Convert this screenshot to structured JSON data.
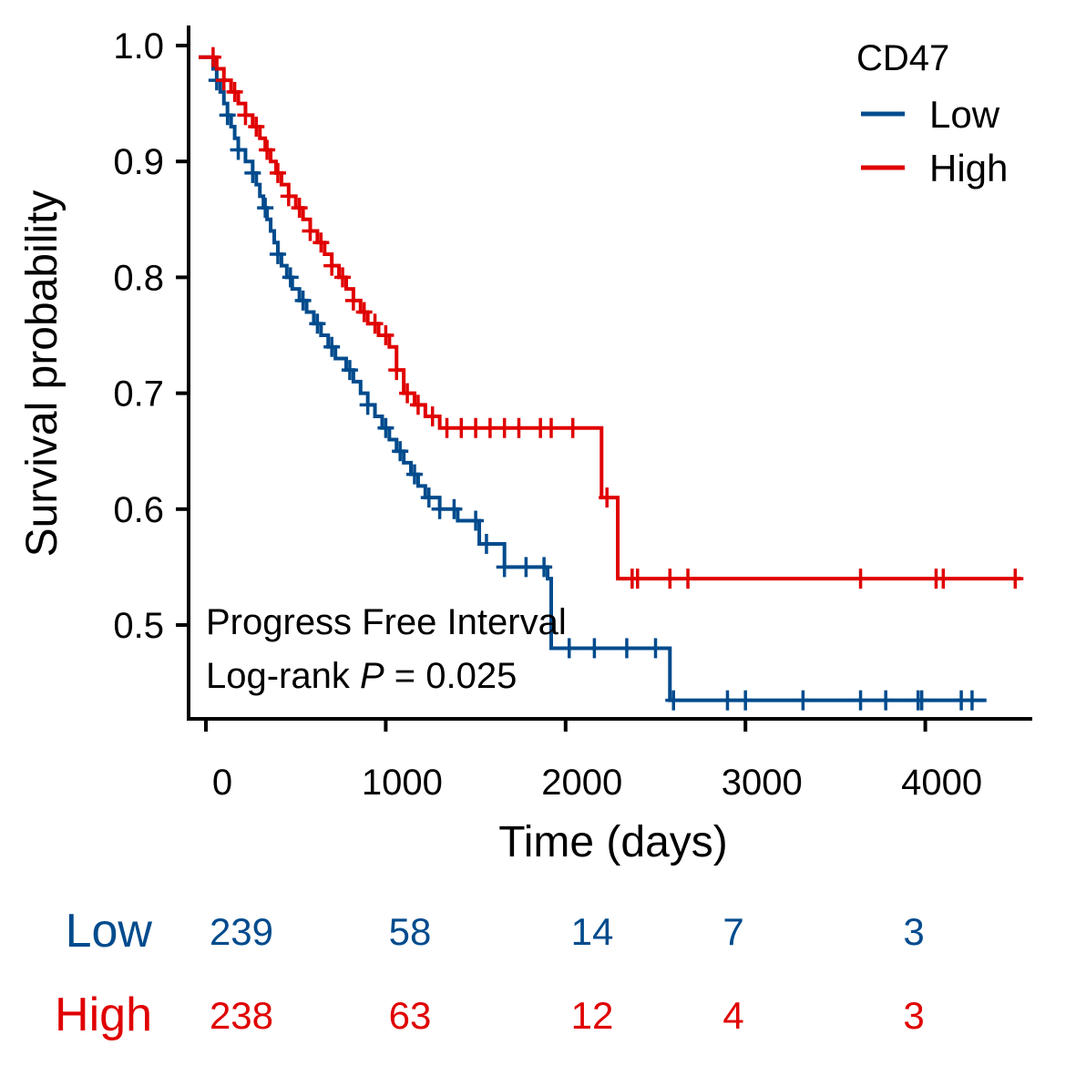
{
  "chart_data": {
    "type": "line",
    "subtype": "kaplan-meier",
    "xlabel": "Time (days)",
    "ylabel": "Survival probability",
    "xlim": [
      -80,
      4580
    ],
    "ylim": [
      0.42,
      1.015
    ],
    "x_ticks": [
      0,
      1000,
      2000,
      3000,
      4000
    ],
    "x_tick_labels": [
      "0",
      "1000",
      "2000",
      "3000",
      "4000"
    ],
    "y_ticks": [
      0.5,
      0.6,
      0.7,
      0.8,
      0.9,
      1.0
    ],
    "y_tick_labels": [
      "0.5",
      "0.6",
      "0.7",
      "0.8",
      "0.9",
      "1.0"
    ],
    "grid": false,
    "legend": {
      "title": "CD47",
      "placement": "top-right",
      "entries": [
        "Low",
        "High"
      ]
    },
    "annotation": {
      "line1": "Progress Free Interval",
      "line2_prefix": "Log-rank  ",
      "line2_p": "P",
      "line2_suffix": " = 0.025"
    },
    "series": [
      {
        "name": "Low",
        "color": "#004B8D",
        "steps": [
          [
            0,
            0.99
          ],
          [
            40,
            0.98
          ],
          [
            60,
            0.97
          ],
          [
            80,
            0.96
          ],
          [
            100,
            0.95
          ],
          [
            120,
            0.94
          ],
          [
            140,
            0.93
          ],
          [
            160,
            0.92
          ],
          [
            180,
            0.91
          ],
          [
            220,
            0.9
          ],
          [
            260,
            0.89
          ],
          [
            280,
            0.88
          ],
          [
            300,
            0.87
          ],
          [
            320,
            0.86
          ],
          [
            340,
            0.85
          ],
          [
            360,
            0.84
          ],
          [
            380,
            0.83
          ],
          [
            400,
            0.82
          ],
          [
            420,
            0.81
          ],
          [
            450,
            0.8
          ],
          [
            480,
            0.79
          ],
          [
            520,
            0.78
          ],
          [
            560,
            0.77
          ],
          [
            600,
            0.76
          ],
          [
            640,
            0.75
          ],
          [
            680,
            0.74
          ],
          [
            720,
            0.73
          ],
          [
            780,
            0.72
          ],
          [
            820,
            0.71
          ],
          [
            860,
            0.7
          ],
          [
            900,
            0.69
          ],
          [
            940,
            0.68
          ],
          [
            980,
            0.67
          ],
          [
            1020,
            0.66
          ],
          [
            1060,
            0.65
          ],
          [
            1100,
            0.64
          ],
          [
            1140,
            0.63
          ],
          [
            1180,
            0.62
          ],
          [
            1220,
            0.61
          ],
          [
            1300,
            0.6
          ],
          [
            1400,
            0.59
          ],
          [
            1520,
            0.57
          ],
          [
            1660,
            0.55
          ],
          [
            1900,
            0.54
          ],
          [
            1920,
            0.48
          ],
          [
            2540,
            0.48
          ],
          [
            2580,
            0.435
          ],
          [
            4340,
            0.435
          ]
        ],
        "censor_times": [
          60,
          120,
          180,
          260,
          330,
          400,
          470,
          540,
          620,
          700,
          800,
          900,
          1000,
          1080,
          1160,
          1240,
          1300,
          1380,
          1500,
          1560,
          1660,
          1780,
          1880,
          2020,
          2160,
          2340,
          2500,
          2600,
          2900,
          3000,
          3320,
          3640,
          3780,
          3960,
          3980,
          4200,
          4260
        ]
      },
      {
        "name": "High",
        "color": "#E00000",
        "steps": [
          [
            0,
            0.99
          ],
          [
            60,
            0.98
          ],
          [
            100,
            0.97
          ],
          [
            140,
            0.96
          ],
          [
            180,
            0.95
          ],
          [
            220,
            0.94
          ],
          [
            260,
            0.93
          ],
          [
            300,
            0.92
          ],
          [
            330,
            0.91
          ],
          [
            360,
            0.9
          ],
          [
            390,
            0.89
          ],
          [
            420,
            0.88
          ],
          [
            460,
            0.87
          ],
          [
            500,
            0.86
          ],
          [
            540,
            0.85
          ],
          [
            580,
            0.84
          ],
          [
            620,
            0.83
          ],
          [
            660,
            0.82
          ],
          [
            700,
            0.81
          ],
          [
            740,
            0.8
          ],
          [
            780,
            0.79
          ],
          [
            820,
            0.78
          ],
          [
            860,
            0.77
          ],
          [
            900,
            0.76
          ],
          [
            960,
            0.75
          ],
          [
            1020,
            0.74
          ],
          [
            1060,
            0.72
          ],
          [
            1100,
            0.7
          ],
          [
            1160,
            0.69
          ],
          [
            1220,
            0.68
          ],
          [
            1300,
            0.67
          ],
          [
            2180,
            0.67
          ],
          [
            2200,
            0.61
          ],
          [
            2270,
            0.61
          ],
          [
            2290,
            0.54
          ],
          [
            4530,
            0.54
          ]
        ],
        "censor_times": [
          40,
          100,
          160,
          220,
          280,
          340,
          400,
          460,
          520,
          580,
          640,
          700,
          760,
          820,
          880,
          940,
          1000,
          1060,
          1120,
          1180,
          1260,
          1340,
          1420,
          1500,
          1580,
          1660,
          1740,
          1860,
          1920,
          2040,
          2230,
          2370,
          2400,
          2580,
          2680,
          3640,
          4060,
          4100,
          4500
        ]
      }
    ],
    "risk_table": {
      "groups": [
        {
          "name": "Low",
          "color": "#004B8D",
          "counts": [
            "239",
            "58",
            "14",
            "7",
            "3"
          ]
        },
        {
          "name": "High",
          "color": "#E00000",
          "counts": [
            "238",
            "63",
            "12",
            "4",
            "3"
          ]
        }
      ]
    }
  }
}
